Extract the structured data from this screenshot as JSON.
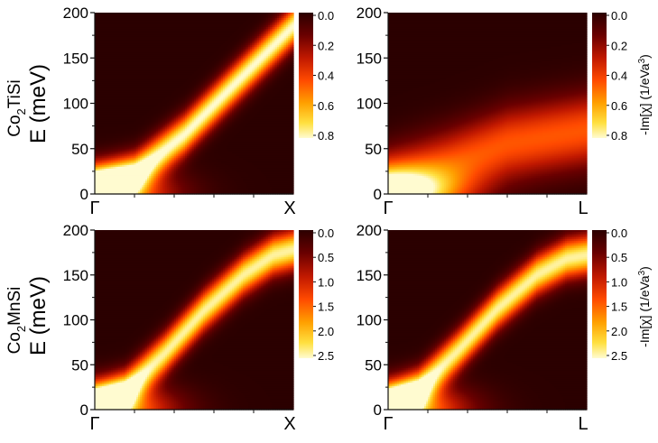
{
  "colors": {
    "colormap": [
      "#2b0000",
      "#5c0000",
      "#b01000",
      "#ff3000",
      "#ff8a00",
      "#ffd400",
      "#fff7b8"
    ],
    "axis": "#111111",
    "background": "#ffffff"
  },
  "rows": [
    {
      "compound_main": "Co",
      "compound_sub": "2",
      "compound_rest": "TiSi",
      "energy_label": "E (meV)"
    },
    {
      "compound_main": "Co",
      "compound_sub": "2",
      "compound_rest": "MnSi",
      "energy_label": "E (meV)"
    }
  ],
  "colorbar_label": "-Im[χ] (1/eVa",
  "colorbar_label_sup": "3",
  "colorbar_label_close": ")",
  "chart_data": [
    {
      "type": "heatmap",
      "compound": "Co2TiSi",
      "path": [
        "Γ",
        "X"
      ],
      "ylabel": "E (meV)",
      "ylim": [
        0,
        200
      ],
      "yticks": [
        0,
        50,
        100,
        150,
        200
      ],
      "colorbar": {
        "range": [
          0.0,
          0.8
        ],
        "ticks": [
          "0.0",
          "0.2",
          "0.4",
          "0.6",
          "0.8"
        ]
      },
      "ridge": {
        "k": [
          0,
          0.2,
          0.45,
          0.7,
          1.0
        ],
        "E": [
          8,
          22,
          65,
          120,
          185
        ]
      },
      "peak_value": 0.8,
      "ridge_width_meV": 22,
      "low_energy_peak": 0.75
    },
    {
      "type": "heatmap",
      "compound": "Co2TiSi",
      "path": [
        "Γ",
        "L"
      ],
      "ylim": [
        0,
        200
      ],
      "yticks": [
        0,
        50,
        100,
        150,
        200
      ],
      "colorbar": {
        "range": [
          0.0,
          0.8
        ],
        "ticks": [
          "0.0",
          "0.2",
          "0.4",
          "0.6",
          "0.8"
        ]
      },
      "ridge": {
        "k": [
          0,
          0.3,
          0.6,
          1.0
        ],
        "E": [
          8,
          30,
          55,
          70
        ]
      },
      "peak_value": 0.45,
      "ridge_width_meV": 40,
      "low_energy_peak": 0.7
    },
    {
      "type": "heatmap",
      "compound": "Co2MnSi",
      "path": [
        "Γ",
        "X"
      ],
      "ylabel": "E (meV)",
      "ylim": [
        0,
        200
      ],
      "yticks": [
        0,
        50,
        100,
        150,
        200
      ],
      "colorbar": {
        "range": [
          0.0,
          2.5
        ],
        "ticks": [
          "0.0",
          "0.5",
          "1.0",
          "1.5",
          "2.0",
          "2.5"
        ]
      },
      "ridge": {
        "k": [
          0,
          0.15,
          0.35,
          0.55,
          0.75,
          0.9,
          1.0
        ],
        "E": [
          5,
          20,
          62,
          110,
          150,
          172,
          178
        ]
      },
      "peak_value": 2.4,
      "ridge_width_meV": 22,
      "low_energy_peak": 2.4
    },
    {
      "type": "heatmap",
      "compound": "Co2MnSi",
      "path": [
        "Γ",
        "L"
      ],
      "ylim": [
        0,
        200
      ],
      "yticks": [
        0,
        50,
        100,
        150,
        200
      ],
      "colorbar": {
        "range": [
          0.0,
          2.5
        ],
        "ticks": [
          "0.0",
          "0.5",
          "1.0",
          "1.5",
          "2.0",
          "2.5"
        ]
      },
      "ridge": {
        "k": [
          0,
          0.15,
          0.35,
          0.55,
          0.75,
          0.9,
          1.0
        ],
        "E": [
          5,
          22,
          65,
          112,
          150,
          168,
          172
        ]
      },
      "peak_value": 2.4,
      "ridge_width_meV": 22,
      "low_energy_peak": 2.4
    }
  ]
}
